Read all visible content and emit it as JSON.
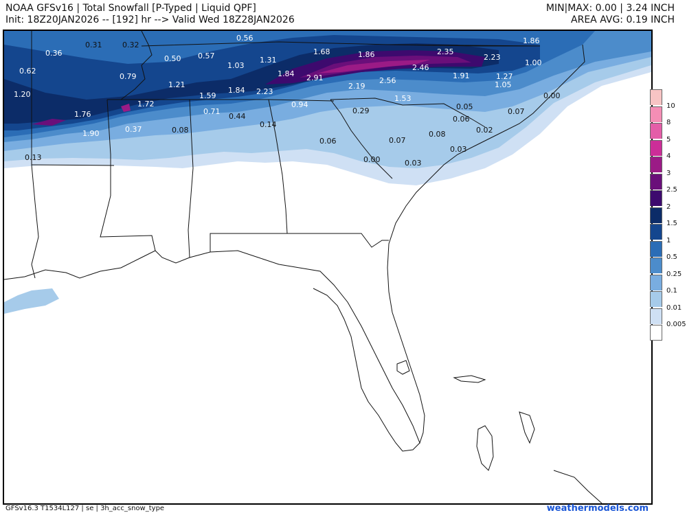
{
  "header": {
    "title": "NOAA GFSv16 | Total Snowfall [P-Typed | Liquid QPF]",
    "init_line": "Init: 18Z20JAN2026 -- [192] hr --> Valid Wed 18Z28JAN2026",
    "minmax": "MIN|MAX: 0.00 | 3.24 INCH",
    "area_avg": "AREA AVG: 0.19 INCH"
  },
  "legend": {
    "levels": [
      {
        "label": "10",
        "color": "#f7c4c4"
      },
      {
        "label": "8",
        "color": "#f48eb5"
      },
      {
        "label": "5",
        "color": "#e45ea8"
      },
      {
        "label": "4",
        "color": "#cc2e98"
      },
      {
        "label": "3",
        "color": "#9b1b86"
      },
      {
        "label": "2.5",
        "color": "#6a0f7a"
      },
      {
        "label": "2",
        "color": "#3d0a6e"
      },
      {
        "label": "1.5",
        "color": "#0c2c68"
      },
      {
        "label": "1",
        "color": "#14468e"
      },
      {
        "label": "0.5",
        "color": "#2b6db6"
      },
      {
        "label": "0.25",
        "color": "#4c8ccb"
      },
      {
        "label": "0.1",
        "color": "#79ade0"
      },
      {
        "label": "0.01",
        "color": "#a6cbea"
      },
      {
        "label": "0.005",
        "color": "#cfe0f4"
      }
    ]
  },
  "map": {
    "values": [
      "0.31",
      "0.32",
      "0.56",
      "1.86",
      "0.36",
      "0.50",
      "0.57",
      "1.68",
      "1.86",
      "2.35",
      "2.23",
      "0.62",
      "0.79",
      "1.03",
      "1.31",
      "1.84",
      "2.91",
      "2.46",
      "1.91",
      "1.27",
      "1.00",
      "1.20",
      "1.21",
      "2.23",
      "2.19",
      "2.56",
      "1.05",
      "1.72",
      "1.59",
      "1.84",
      "1.53",
      "0.05",
      "0.00",
      "0.94",
      "0.71",
      "0.44",
      "0.29",
      "0.06",
      "0.07",
      "1.76",
      "0.14",
      "0.08",
      "0.37",
      "1.90",
      "0.06",
      "0.02",
      "0.08",
      "0.07",
      "0.03",
      "0.13",
      "0.00",
      "0.03"
    ]
  },
  "footer": {
    "model_info": "GFSv16.3 T1534L127 | se | 3h_acc_snow_type",
    "brand": "weathermodels.com"
  }
}
